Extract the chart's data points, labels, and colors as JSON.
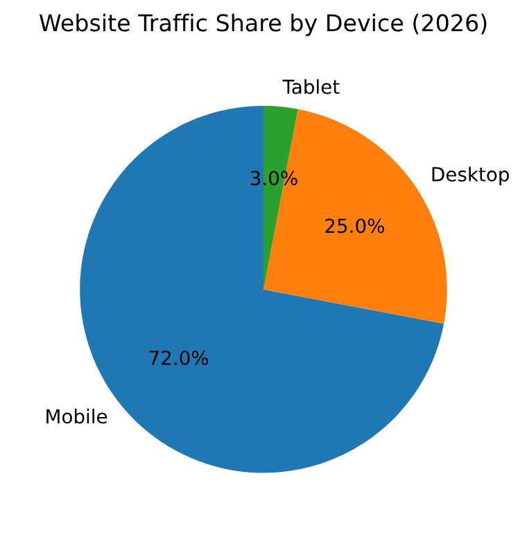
{
  "chart_data": {
    "type": "pie",
    "title": "Website Traffic Share by Device (2026)",
    "categories": [
      "Mobile",
      "Desktop",
      "Tablet"
    ],
    "values": [
      72,
      25,
      3
    ],
    "colors": [
      "#1f77b4",
      "#ff7f0e",
      "#2ca02c"
    ],
    "value_labels": [
      "72.0%",
      "25.0%",
      "3.0%"
    ]
  }
}
